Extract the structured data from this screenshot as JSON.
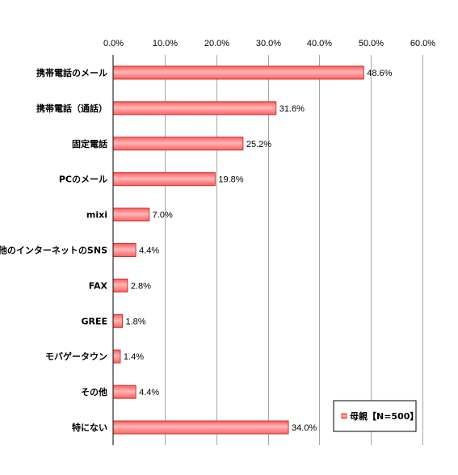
{
  "chart_data": {
    "type": "bar",
    "orientation": "horizontal",
    "categories": [
      "携帯電話のメール",
      "携帯電話（通話）",
      "固定電話",
      "PCのメール",
      "mixi",
      "その他のインターネットのSNS",
      "FAX",
      "GREE",
      "モバゲータウン",
      "その他",
      "特にない"
    ],
    "series": [
      {
        "name": "母親【N=500】",
        "values": [
          48.6,
          31.6,
          25.2,
          19.8,
          7.0,
          4.4,
          2.8,
          1.8,
          1.4,
          4.4,
          34.0
        ]
      }
    ],
    "data_labels": [
      "48.6%",
      "31.6%",
      "25.2%",
      "19.8%",
      "7.0%",
      "4.4%",
      "2.8%",
      "1.8%",
      "1.4%",
      "4.4%",
      "34.0%"
    ],
    "xlim": [
      0,
      60
    ],
    "ticks": [
      "0.0%",
      "10.0%",
      "20.0%",
      "30.0%",
      "40.0%",
      "50.0%",
      "60.0%"
    ],
    "grid": true,
    "legend_position": "bottom-right",
    "colors": {
      "bar_fill": "#ff6b6b",
      "bar_highlight": "#ffb3b3",
      "bar_edge": "#c83232",
      "grid": "#a6a6a6",
      "axis": "#000000"
    }
  }
}
